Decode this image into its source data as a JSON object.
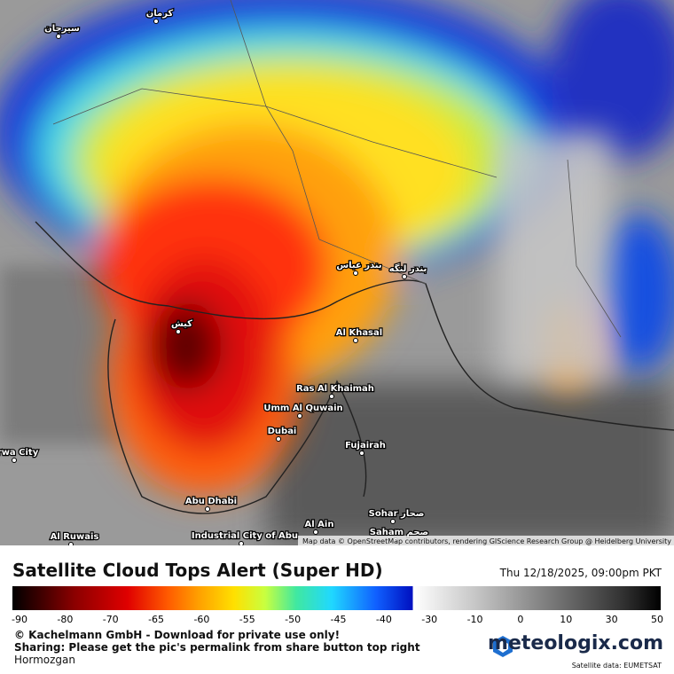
{
  "map": {
    "labels": [
      "کرمان",
      "سیرجان",
      "بندر عباس",
      "بندر لنگه",
      "کیش",
      "Al Khasal",
      "Ras Al Khaimah",
      "Umm Al Quwain",
      "Dubai",
      "Fujairah",
      "Abu Dhabi",
      "Al Ain",
      "Sohar صحار",
      "Saham صحم",
      "Industrial City of Abu",
      "Al Ruwais",
      "rwa City"
    ],
    "attribution": "Map data © OpenStreetMap contributors, rendering GIScience Research Group @ Heidelberg University"
  },
  "footer": {
    "title": "Satellite Cloud Tops Alert (Super HD)",
    "datetime": "Thu 12/18/2025, 09:00pm PKT",
    "ticks": [
      -90,
      -80,
      -70,
      -65,
      -60,
      -55,
      -50,
      -45,
      -40,
      -30,
      -10,
      0,
      10,
      30,
      50
    ],
    "copyright": "© Kachelmann GmbH - Download for private use only!",
    "sharing": "Sharing: Please get the pic's permalink from share button top right",
    "region": "Hormozgan",
    "brand": "meteologix.com",
    "source": "Satellite data: EUMETSAT"
  }
}
